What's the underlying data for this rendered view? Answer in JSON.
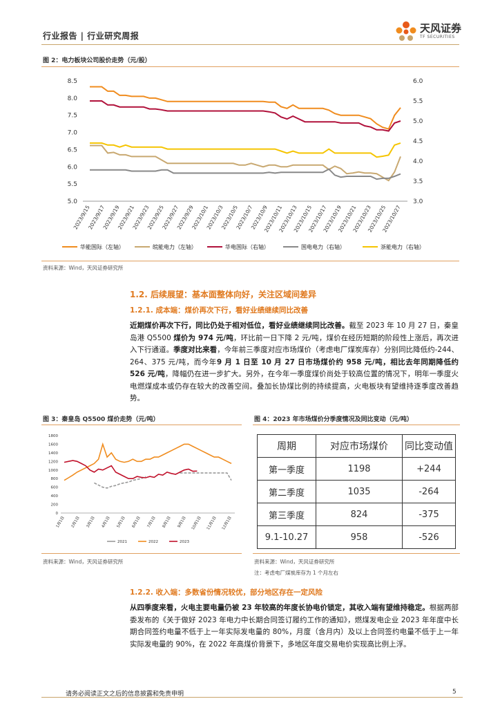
{
  "header": {
    "title": "行业报告 | 行业研究周报",
    "logo_cn": "天风证券",
    "logo_en": "TF SECURITIES"
  },
  "fig2": {
    "title": "图 2：电力板块公司股价走势（元/股）",
    "source": "资料来源：Wind，天风证券研究所",
    "chart_data": {
      "type": "line",
      "title": "",
      "y_left_ticks": [
        "8.5",
        "8.0",
        "7.5",
        "7.0",
        "6.5",
        "6.0",
        "5.5",
        "5.0"
      ],
      "y_right_ticks": [
        "6.0",
        "5.5",
        "5.0",
        "4.5",
        "4.0",
        "3.5",
        "3.0"
      ],
      "ylim_left": [
        5.0,
        8.5
      ],
      "ylim_right": [
        3.0,
        6.0
      ],
      "x_tick_labels": [
        "2023/9/15",
        "2023/9/17",
        "2023/9/19",
        "2023/9/21",
        "2023/9/23",
        "2023/9/25",
        "2023/9/27",
        "2023/9/29",
        "2023/10/1",
        "2023/10/3",
        "2023/10/5",
        "2023/10/7",
        "2023/10/9",
        "2023/10/11",
        "2023/10/13",
        "2023/10/15",
        "2023/10/17",
        "2023/10/19",
        "2023/10/21",
        "2023/10/23",
        "2023/10/25",
        "2023/10/27"
      ],
      "series": [
        {
          "name": "华能国际（左轴）",
          "axis": "left",
          "color": "#f08c1e",
          "values": [
            8.33,
            8.33,
            8.33,
            8.2,
            8.2,
            8.08,
            8.08,
            8.05,
            8.05,
            8.05,
            8.0,
            8.0,
            7.95,
            7.9,
            7.9,
            7.9,
            7.9,
            7.9,
            7.9,
            7.9,
            7.9,
            7.9,
            7.9,
            7.9,
            7.9,
            7.9,
            7.9,
            7.9,
            7.9,
            7.9,
            7.88,
            7.88,
            7.75,
            7.7,
            7.8,
            7.7,
            7.7,
            7.7,
            7.7,
            7.7,
            7.65,
            7.55,
            7.5,
            7.5,
            7.5,
            7.5,
            7.45,
            7.4,
            7.25,
            7.15,
            7.1,
            7.5,
            7.72
          ]
        },
        {
          "name": "皖能电力（左轴）",
          "axis": "left",
          "color": "#c8a870",
          "values": [
            6.62,
            6.62,
            6.62,
            6.4,
            6.42,
            6.35,
            6.35,
            6.3,
            6.3,
            6.3,
            6.3,
            6.3,
            6.2,
            6.1,
            6.1,
            6.1,
            6.1,
            6.1,
            6.1,
            6.1,
            6.1,
            6.1,
            6.1,
            6.1,
            6.1,
            6.05,
            6.05,
            6.1,
            6.05,
            6.0,
            6.05,
            6.05,
            6.0,
            6.0,
            6.05,
            6.05,
            6.05,
            6.05,
            6.05,
            6.05,
            5.92,
            6.02,
            5.95,
            5.8,
            5.82,
            5.85,
            5.82,
            5.82,
            5.8,
            5.7,
            5.6,
            5.85,
            6.3
          ]
        },
        {
          "name": "华电国际（右轴）",
          "axis": "right",
          "color": "#b0103a",
          "values": [
            5.5,
            5.5,
            5.5,
            5.4,
            5.4,
            5.35,
            5.35,
            5.35,
            5.35,
            5.35,
            5.3,
            5.3,
            5.28,
            5.25,
            5.25,
            5.25,
            5.25,
            5.25,
            5.25,
            5.25,
            5.25,
            5.25,
            5.25,
            5.25,
            5.25,
            5.25,
            5.25,
            5.25,
            5.25,
            5.25,
            5.23,
            5.2,
            5.1,
            5.05,
            5.12,
            5.05,
            4.98,
            4.98,
            4.98,
            4.98,
            4.98,
            4.98,
            4.95,
            4.95,
            4.95,
            4.95,
            4.88,
            4.85,
            4.78,
            4.78,
            4.75,
            4.95,
            5.0
          ]
        },
        {
          "name": "国电电力（右轴）",
          "axis": "right",
          "color": "#888888",
          "values": [
            3.78,
            3.78,
            3.78,
            3.78,
            3.78,
            3.78,
            3.78,
            3.75,
            3.75,
            3.75,
            3.75,
            3.75,
            3.78,
            3.78,
            3.7,
            3.7,
            3.7,
            3.7,
            3.7,
            3.7,
            3.7,
            3.7,
            3.7,
            3.7,
            3.7,
            3.7,
            3.7,
            3.7,
            3.7,
            3.7,
            3.72,
            3.7,
            3.72,
            3.72,
            3.72,
            3.72,
            3.72,
            3.72,
            3.72,
            3.72,
            3.8,
            3.65,
            3.6,
            3.62,
            3.62,
            3.62,
            3.62,
            3.62,
            3.55,
            3.57,
            3.57,
            3.62,
            3.68
          ]
        },
        {
          "name": "浙能电力（右轴）",
          "axis": "right",
          "color": "#f5c400",
          "values": [
            4.45,
            4.45,
            4.45,
            4.4,
            4.4,
            4.35,
            4.4,
            4.35,
            4.35,
            4.35,
            4.35,
            4.35,
            4.35,
            4.3,
            4.3,
            4.3,
            4.3,
            4.3,
            4.3,
            4.3,
            4.3,
            4.3,
            4.3,
            4.3,
            4.3,
            4.3,
            4.3,
            4.3,
            4.3,
            4.3,
            4.3,
            4.3,
            4.25,
            4.2,
            4.25,
            4.2,
            4.2,
            4.2,
            4.2,
            4.2,
            4.3,
            4.2,
            4.2,
            4.2,
            4.2,
            4.2,
            4.2,
            4.2,
            4.1,
            4.12,
            4.15,
            4.4,
            4.45
          ]
        }
      ]
    }
  },
  "section12": {
    "heading": "1.2. 后续展望：基本面整体向好，关注区域间差异",
    "sub1": "1.2.1. 成本端：煤价再次下行，看好业绩继续同比改善",
    "para1_bold1": "近期煤价再次下行，同比仍处于相对低位，看好业绩继续同比改善。",
    "para1_text1": "截至 2023 年 10 月 27 日，秦皇岛港 Q5500 ",
    "para1_bold2": "煤价为 974 元/吨",
    "para1_text2": "，环比前一日下降 2 元/吨，煤价在经历短期的阶段性上涨后，再次进入下行通道。",
    "para1_bold3": "季度对比来看",
    "para1_text3": "，今年前三季度对应市场煤价（考虑电厂煤炭库存）分别同比降低约-244、264、375 元/吨，而今年",
    "para1_bold4": "9 月 1 日至 10 月 27 日市场煤价约 958 元/吨，相比去年同期降低约 526 元/吨",
    "para1_text4": "，降幅仍在进一步扩大。另外，在今年一季度煤价尚处于较高位置的情况下，明年一季度火电燃煤成本或仍存在较大的改善空间。叠加长协煤比例的持续提高，火电板块有望维持逐季度改善趋势。"
  },
  "fig3": {
    "title": "图 3：秦皇岛 Q5500 煤价走势（元/吨）",
    "source": "资料来源：Wind，天风证券研究所",
    "chart_data": {
      "type": "line",
      "title": "",
      "y_ticks": [
        "1800",
        "1600",
        "1400",
        "1200",
        "1000",
        "800",
        "600",
        "400",
        "200",
        "0"
      ],
      "ylim": [
        0,
        1800
      ],
      "x_tick_labels": [
        "1月1日",
        "2月1日",
        "3月1日",
        "4月1日",
        "5月1日",
        "6月1日",
        "7月1日",
        "8月1日",
        "9月1日",
        "10月1日",
        "11月1日",
        "12月1日"
      ],
      "series": [
        {
          "name": "2021",
          "color": "#999999",
          "values": [
            null,
            null,
            null,
            null,
            null,
            null,
            null,
            null,
            null,
            null,
            null,
            null,
            null,
            null,
            null,
            null,
            null,
            null,
            null,
            null,
            null,
            null,
            null,
            null,
            null,
            null,
            null,
            null,
            null,
            null,
            null,
            null,
            null,
            null,
            null,
            null,
            null,
            null,
            null,
            null,
            null,
            null,
            null,
            null,
            null,
            null,
            null,
            null,
            null,
            null
          ]
        },
        {
          "name": "2022",
          "color": "#f08c1e",
          "values": [
            null
          ]
        },
        {
          "name": "2023",
          "color": "#c0102a",
          "values": [
            null
          ]
        }
      ],
      "legend_position": "bottom"
    }
  },
  "fig4": {
    "title": "图 4：2023 年市场煤价分季度情况及同比变动（元/吨）",
    "source": "资料来源：Wind，天风证券研究所",
    "note": "注：考虑电厂煤炭库存为 1 个月左右",
    "headers": [
      "周期",
      "对应市场煤价",
      "同比变动值"
    ],
    "rows": [
      [
        "第一季度",
        "1198",
        "+244"
      ],
      [
        "第二季度",
        "1035",
        "-264"
      ],
      [
        "第三季度",
        "824",
        "-375"
      ],
      [
        "9.1-10.27",
        "958",
        "-526"
      ]
    ]
  },
  "section122": {
    "sub2": "1.2.2. 收入端：多数省份情况较优，部分地区存在一定风险",
    "para2_bold1": "从四季度来看，火电主要电量仍被 23 年较高的年度长协电价锁定，其收入端有望维持稳定。",
    "para2_text1": "根据两部委发布的《关于做好 2023 年电力中长期合同签订履约工作的通知》，燃煤发电企业 2023 年年度中长期合同签约电量不低于上一年实际发电量的 80%，月度（含月内）及以上合同签约电量不低于上一年实际发电量的 90%，在 2022 年高煤价背景下，多地区年度交易电价实现高比例上浮。"
  },
  "footer": {
    "disclaimer": "请务必阅读正文之后的信息披露和免责申明",
    "page": "5"
  }
}
